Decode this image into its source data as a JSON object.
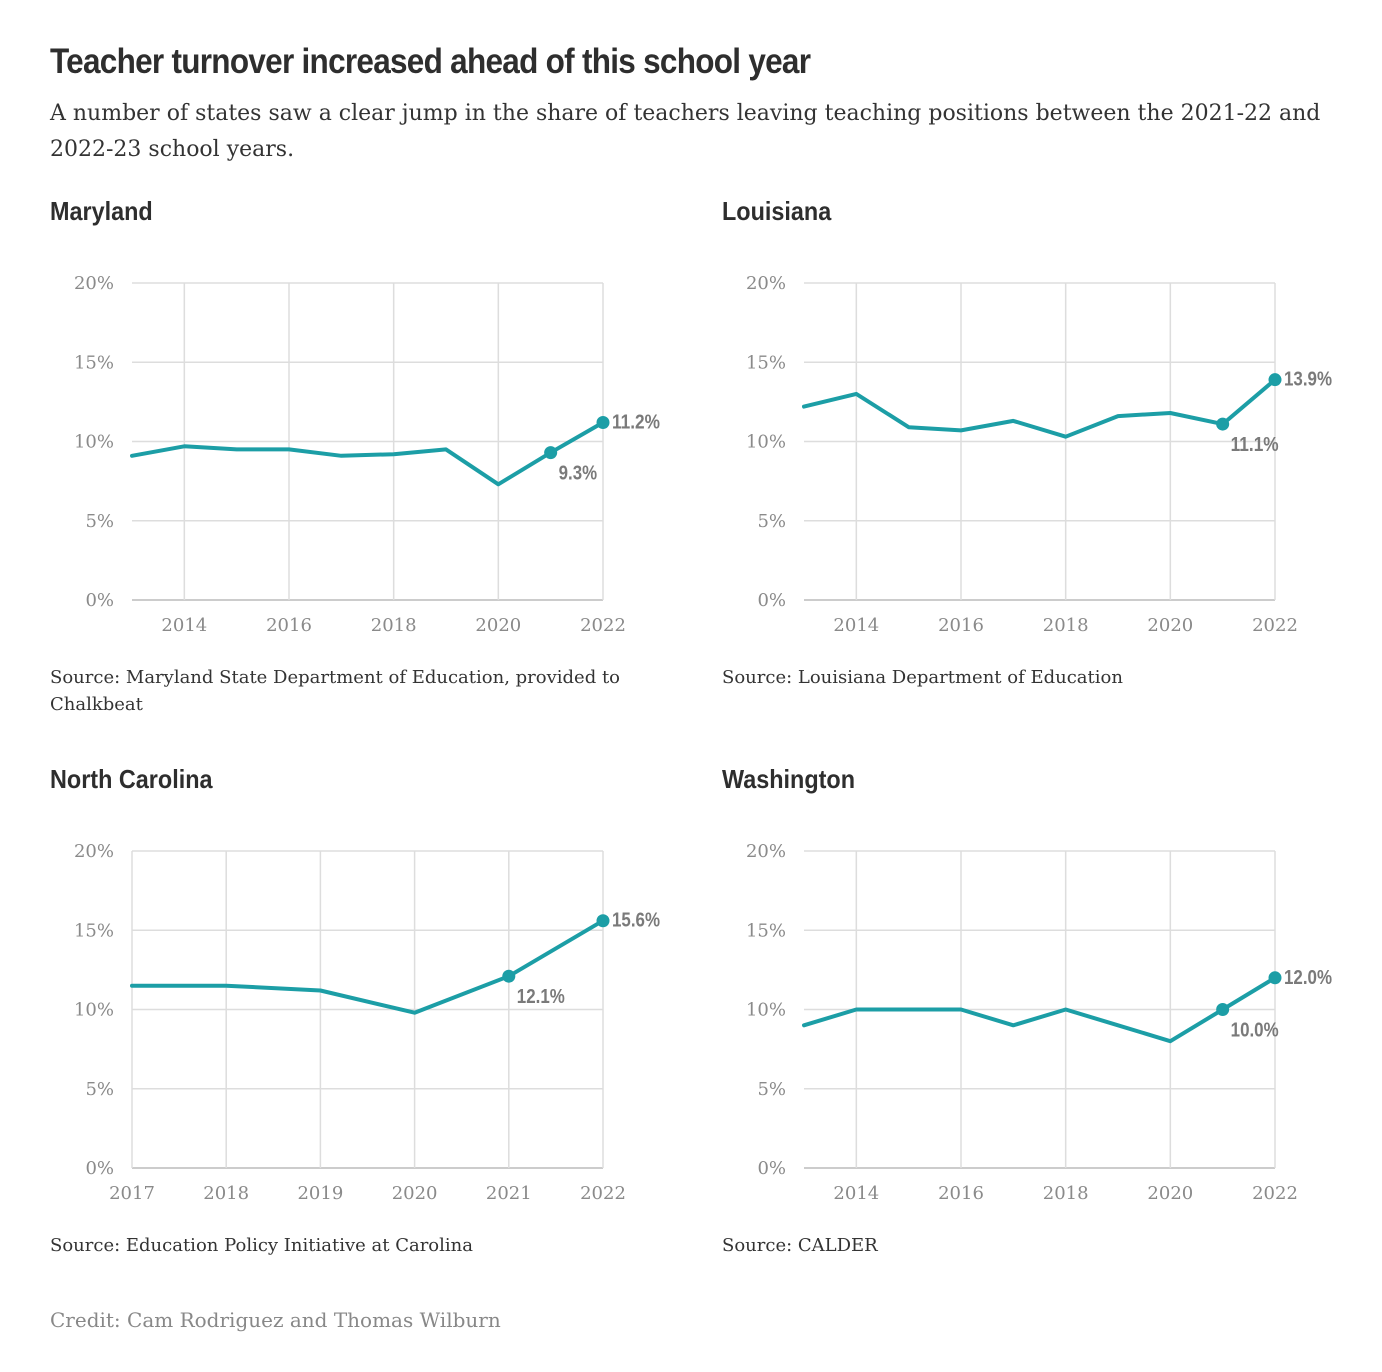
{
  "title": "Teacher turnover increased ahead of this school year",
  "subtitle": "A number of states saw a clear jump in the share of teachers leaving teaching positions between the 2021-22 and 2022-23 school years.",
  "credit": "Credit: Cam Rodriguez and Thomas Wilburn",
  "colors": {
    "line": "#1c9ea6",
    "grid": "#dddddd",
    "axis": "#cccccc",
    "tick": "#8a8a8a",
    "label": "#7a7a7a"
  },
  "chart_data": [
    {
      "type": "line",
      "title": "Maryland",
      "source": "Source: Maryland State Department of Education, provided to Chalkbeat",
      "x": [
        2013,
        2014,
        2015,
        2016,
        2017,
        2018,
        2019,
        2020,
        2021,
        2022
      ],
      "values": [
        9.1,
        9.7,
        9.5,
        9.5,
        9.1,
        9.2,
        9.5,
        7.3,
        9.3,
        11.2
      ],
      "xlim": [
        2013,
        2022
      ],
      "ylim": [
        0,
        20
      ],
      "x_ticks": [
        "2014",
        "2016",
        "2018",
        "2020",
        "2022"
      ],
      "y_ticks": [
        "0%",
        "5%",
        "10%",
        "15%",
        "20%"
      ],
      "highlights": [
        {
          "x": 2021,
          "label": "9.3%",
          "position": "below"
        },
        {
          "x": 2022,
          "label": "11.2%",
          "position": "right"
        }
      ]
    },
    {
      "type": "line",
      "title": "Louisiana",
      "source": "Source: Louisiana Department of Education",
      "x": [
        2013,
        2014,
        2015,
        2016,
        2017,
        2018,
        2019,
        2020,
        2021,
        2022
      ],
      "values": [
        12.2,
        13.0,
        10.9,
        10.7,
        11.3,
        10.3,
        11.6,
        11.8,
        11.1,
        13.9
      ],
      "xlim": [
        2013,
        2022
      ],
      "ylim": [
        0,
        20
      ],
      "x_ticks": [
        "2014",
        "2016",
        "2018",
        "2020",
        "2022"
      ],
      "y_ticks": [
        "0%",
        "5%",
        "10%",
        "15%",
        "20%"
      ],
      "highlights": [
        {
          "x": 2021,
          "label": "11.1%",
          "position": "below"
        },
        {
          "x": 2022,
          "label": "13.9%",
          "position": "right"
        }
      ]
    },
    {
      "type": "line",
      "title": "North Carolina",
      "source": "Source: Education Policy Initiative at Carolina",
      "x": [
        2017,
        2018,
        2019,
        2020,
        2021,
        2022
      ],
      "values": [
        11.5,
        11.5,
        11.2,
        9.8,
        12.1,
        15.6
      ],
      "xlim": [
        2017,
        2022
      ],
      "ylim": [
        0,
        20
      ],
      "x_ticks": [
        "2017",
        "2018",
        "2019",
        "2020",
        "2021",
        "2022"
      ],
      "y_ticks": [
        "0%",
        "5%",
        "10%",
        "15%",
        "20%"
      ],
      "highlights": [
        {
          "x": 2021,
          "label": "12.1%",
          "position": "below"
        },
        {
          "x": 2022,
          "label": "15.6%",
          "position": "right"
        }
      ]
    },
    {
      "type": "line",
      "title": "Washington",
      "source": "Source: CALDER",
      "x": [
        2013,
        2014,
        2015,
        2016,
        2017,
        2018,
        2019,
        2020,
        2021,
        2022
      ],
      "values": [
        9.0,
        10.0,
        10.0,
        10.0,
        9.0,
        10.0,
        9.0,
        8.0,
        10.0,
        12.0
      ],
      "xlim": [
        2013,
        2022
      ],
      "ylim": [
        0,
        20
      ],
      "x_ticks": [
        "2014",
        "2016",
        "2018",
        "2020",
        "2022"
      ],
      "y_ticks": [
        "0%",
        "5%",
        "10%",
        "15%",
        "20%"
      ],
      "highlights": [
        {
          "x": 2021,
          "label": "10.0%",
          "position": "below"
        },
        {
          "x": 2022,
          "label": "12.0%",
          "position": "right"
        }
      ]
    }
  ]
}
